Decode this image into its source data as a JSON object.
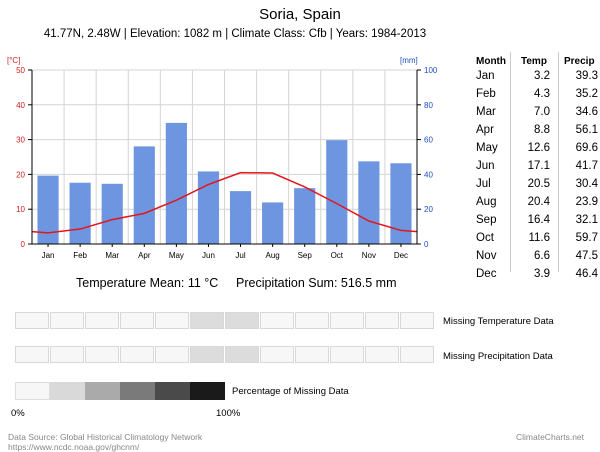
{
  "title": "Soria, Spain",
  "subtitle": "41.77N, 2.48W | Elevation: 1082 m | Climate Class: Cfb | Years: 1984-2013",
  "axis_left_unit": "[°C]",
  "axis_right_unit": "[mm]",
  "colors": {
    "temp": "#e2161e",
    "precip": "#6e96e0",
    "axis_left": "#cc2020",
    "axis_right": "#1e4fc0"
  },
  "chart_data": {
    "type": "bar+line",
    "categories": [
      "Jan",
      "Feb",
      "Mar",
      "Apr",
      "May",
      "Jun",
      "Jul",
      "Aug",
      "Sep",
      "Oct",
      "Nov",
      "Dec"
    ],
    "temp_ticks": [
      0,
      10,
      20,
      30,
      40,
      50
    ],
    "precip_ticks": [
      0,
      20,
      40,
      60,
      80,
      100
    ],
    "temp_range": [
      0,
      50
    ],
    "precip_range": [
      0,
      100
    ],
    "series": [
      {
        "values": [
          3.2,
          4.3,
          7.0,
          8.8,
          12.6,
          17.1,
          20.5,
          20.4,
          16.4,
          11.6,
          6.6,
          3.9
        ]
      },
      {
        "values": [
          39.3,
          35.2,
          34.6,
          56.1,
          69.6,
          41.7,
          30.4,
          23.9,
          32.1,
          59.7,
          47.5,
          46.4
        ]
      }
    ]
  },
  "table": {
    "headers": [
      "Month",
      "Temp",
      "Precip"
    ],
    "rows": [
      [
        "Jan",
        "3.2",
        "39.3"
      ],
      [
        "Feb",
        "4.3",
        "35.2"
      ],
      [
        "Mar",
        "7.0",
        "34.6"
      ],
      [
        "Apr",
        "8.8",
        "56.1"
      ],
      [
        "May",
        "12.6",
        "69.6"
      ],
      [
        "Jun",
        "17.1",
        "41.7"
      ],
      [
        "Jul",
        "20.5",
        "30.4"
      ],
      [
        "Aug",
        "20.4",
        "23.9"
      ],
      [
        "Sep",
        "16.4",
        "32.1"
      ],
      [
        "Oct",
        "11.6",
        "59.7"
      ],
      [
        "Nov",
        "6.6",
        "47.5"
      ],
      [
        "Dec",
        "3.9",
        "46.4"
      ]
    ]
  },
  "stats": {
    "temp_mean": "Temperature Mean: 11 °C",
    "precip_sum": "Precipitation Sum: 516.5 mm"
  },
  "missing": {
    "temp_label": "Missing Temperature Data",
    "precip_label": "Missing Precipitation Data",
    "temp_shaded": [
      5,
      6
    ],
    "precip_shaded": [
      5,
      6
    ],
    "legend_label": "Percentage of Missing Data",
    "legend_min": "0%",
    "legend_max": "100%",
    "legend_colors": [
      "#f7f7f7",
      "#d9d9d9",
      "#aaaaaa",
      "#7a7a7a",
      "#4a4a4a",
      "#1a1a1a"
    ]
  },
  "footer": {
    "source_line1": "Data Source: Global Historical Climatology Network",
    "source_line2": "https://www.ncdc.noaa.gov/ghcnm/",
    "brand": "ClimateCharts.net"
  }
}
